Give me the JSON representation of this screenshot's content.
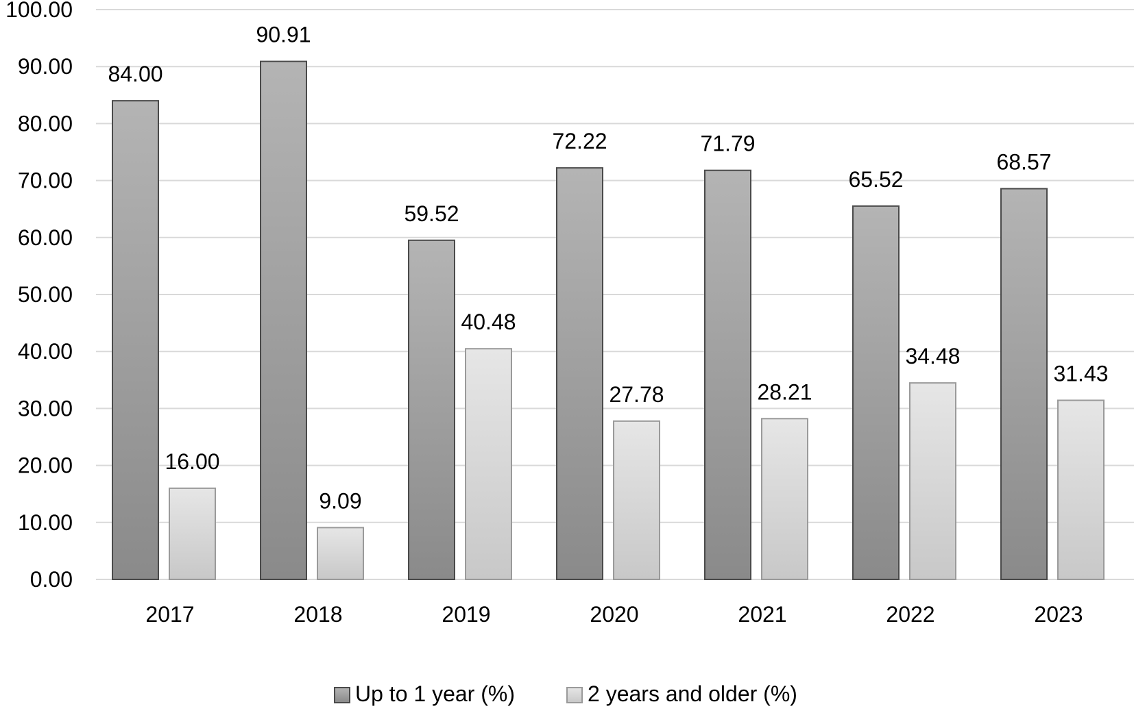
{
  "chart_data": {
    "type": "bar",
    "title": "",
    "xlabel": "",
    "ylabel": "",
    "categories": [
      "2017",
      "2018",
      "2019",
      "2020",
      "2021",
      "2022",
      "2023"
    ],
    "series": [
      {
        "name": "Up to 1 year (%)",
        "values": [
          84.0,
          90.91,
          59.52,
          72.22,
          71.79,
          65.52,
          68.57
        ],
        "labels": [
          "84.00",
          "90.91",
          "59.52",
          "72.22",
          "71.79",
          "65.52",
          "68.57"
        ],
        "color_top": "#b4b4b4",
        "color_bottom": "#8a8a8a",
        "stroke": "#4a4a4a"
      },
      {
        "name": "2 years and older (%)",
        "values": [
          16.0,
          9.09,
          40.48,
          27.78,
          28.21,
          34.48,
          31.43
        ],
        "labels": [
          "16.00",
          "9.09",
          "40.48",
          "27.78",
          "28.21",
          "34.48",
          "31.43"
        ],
        "color_top": "#e6e6e6",
        "color_bottom": "#c8c8c8",
        "stroke": "#9a9a9a"
      }
    ],
    "ylim": [
      0,
      100
    ],
    "yticks": [
      "0.00",
      "10.00",
      "20.00",
      "30.00",
      "40.00",
      "50.00",
      "60.00",
      "70.00",
      "80.00",
      "90.00",
      "100.00"
    ],
    "grid": true,
    "grid_color": "#d9d9d9",
    "legend_position": "bottom"
  }
}
